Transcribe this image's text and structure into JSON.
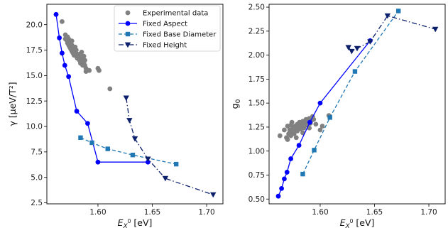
{
  "chart_data": [
    {
      "type": "scatter",
      "xlabel_base": "E",
      "xlabel_sub": "X",
      "xlabel_sup": "0",
      "xlabel_unit": " [eV]",
      "ylabel": "γ [μeV/T²]",
      "xlim": [
        1.553,
        1.715
      ],
      "ylim": [
        2.4,
        22.0
      ],
      "xticks": [
        "1.60",
        "1.65",
        "1.70"
      ],
      "xtick_values": [
        1.6,
        1.65,
        1.7
      ],
      "yticks": [
        "2.5",
        "5.0",
        "7.5",
        "10.0",
        "12.5",
        "15.0",
        "17.5",
        "20.0"
      ],
      "ytick_values": [
        2.5,
        5.0,
        7.5,
        10.0,
        12.5,
        15.0,
        17.5,
        20.0
      ],
      "grid": false,
      "legend_position": "top-right",
      "series": [
        {
          "name": "Experimental data",
          "color": "#808080",
          "marker": "circle",
          "line": false,
          "x": [
            1.567,
            1.57,
            1.57,
            1.571,
            1.572,
            1.572,
            1.573,
            1.573,
            1.574,
            1.574,
            1.575,
            1.575,
            1.576,
            1.576,
            1.577,
            1.577,
            1.578,
            1.578,
            1.579,
            1.58,
            1.58,
            1.581,
            1.581,
            1.582,
            1.583,
            1.583,
            1.584,
            1.585,
            1.586,
            1.587,
            1.588,
            1.589,
            1.59,
            1.588,
            1.587,
            1.585,
            1.586,
            1.589,
            1.592,
            1.6,
            1.601,
            1.611,
            1.584,
            1.579,
            1.576
          ],
          "y": [
            20.3,
            19.0,
            18.6,
            18.5,
            18.8,
            18.2,
            18.6,
            18.0,
            18.2,
            17.8,
            18.4,
            17.6,
            18.0,
            17.4,
            17.8,
            17.2,
            17.6,
            17.0,
            17.3,
            17.5,
            16.9,
            17.1,
            16.7,
            16.9,
            17.1,
            16.5,
            16.7,
            16.4,
            16.8,
            16.2,
            16.5,
            15.7,
            15.5,
            16.0,
            16.9,
            17.3,
            16.0,
            15.4,
            15.5,
            15.7,
            15.5,
            13.7,
            16.2,
            17.8,
            18.4
          ]
        },
        {
          "name": "Fixed Aspect",
          "color": "#0000ff",
          "marker": "circle",
          "line": "solid",
          "x": [
            1.5615,
            1.5645,
            1.567,
            1.5695,
            1.573,
            1.5805,
            1.5905,
            1.6,
            1.646
          ],
          "y": [
            21.0,
            18.7,
            17.2,
            16.0,
            14.9,
            11.5,
            10.3,
            6.5,
            6.5
          ]
        },
        {
          "name": "Fixed Base Diameter",
          "color": "#1f77b4",
          "marker": "square",
          "line": "dashed",
          "x": [
            1.584,
            1.5945,
            1.609,
            1.632,
            1.672
          ],
          "y": [
            8.9,
            8.4,
            7.8,
            7.2,
            6.3
          ]
        },
        {
          "name": "Fixed Height",
          "color": "#0b1f6b",
          "marker": "triangle-down",
          "line": "dashdot",
          "x": [
            1.626,
            1.629,
            1.634,
            1.646,
            1.662,
            1.706
          ],
          "y": [
            12.8,
            10.6,
            8.8,
            6.8,
            4.9,
            3.3
          ]
        }
      ]
    },
    {
      "type": "scatter",
      "xlabel_base": "E",
      "xlabel_sub": "X",
      "xlabel_sup": "0",
      "xlabel_unit": " [eV]",
      "ylabel_base": "g",
      "ylabel_sub": "0",
      "xlim": [
        1.553,
        1.715
      ],
      "ylim": [
        0.45,
        2.53
      ],
      "xticks": [
        "1.60",
        "1.65",
        "1.70"
      ],
      "xtick_values": [
        1.6,
        1.65,
        1.7
      ],
      "yticks": [
        "0.50",
        "0.75",
        "1.00",
        "1.25",
        "1.50",
        "1.75",
        "2.00",
        "2.25",
        "2.50"
      ],
      "ytick_values": [
        0.5,
        0.75,
        1.0,
        1.25,
        1.5,
        1.75,
        2.0,
        2.25,
        2.5
      ],
      "grid": false,
      "series": [
        {
          "name": "Experimental data",
          "color": "#808080",
          "marker": "circle",
          "line": false,
          "x": [
            1.563,
            1.567,
            1.569,
            1.57,
            1.571,
            1.572,
            1.573,
            1.574,
            1.575,
            1.576,
            1.577,
            1.578,
            1.579,
            1.58,
            1.581,
            1.582,
            1.583,
            1.584,
            1.585,
            1.586,
            1.587,
            1.588,
            1.589,
            1.59,
            1.591,
            1.592,
            1.593,
            1.594,
            1.57,
            1.573,
            1.576,
            1.579,
            1.582,
            1.585,
            1.588,
            1.591,
            1.6,
            1.602,
            1.608,
            1.574,
            1.578,
            1.584,
            1.59,
            1.596
          ],
          "y": [
            1.16,
            1.22,
            1.14,
            1.26,
            1.18,
            1.22,
            1.27,
            1.2,
            1.24,
            1.19,
            1.26,
            1.22,
            1.28,
            1.24,
            1.3,
            1.25,
            1.27,
            1.31,
            1.26,
            1.29,
            1.33,
            1.28,
            1.31,
            1.34,
            1.3,
            1.32,
            1.36,
            1.33,
            1.12,
            1.16,
            1.18,
            1.21,
            1.23,
            1.24,
            1.27,
            1.29,
            1.22,
            1.26,
            1.37,
            1.3,
            1.14,
            1.19,
            1.24,
            1.28
          ]
        },
        {
          "name": "Fixed Aspect",
          "color": "#0000ff",
          "marker": "circle",
          "line": "solid",
          "x": [
            1.5615,
            1.5645,
            1.567,
            1.5695,
            1.573,
            1.5805,
            1.5905,
            1.6,
            1.646
          ],
          "y": [
            0.53,
            0.61,
            0.71,
            0.78,
            0.92,
            1.06,
            1.3,
            1.5,
            2.15
          ]
        },
        {
          "name": "Fixed Base Diameter",
          "color": "#1f77b4",
          "marker": "square",
          "line": "dashed",
          "x": [
            1.584,
            1.5945,
            1.609,
            1.632,
            1.672
          ],
          "y": [
            0.76,
            1.01,
            1.35,
            1.83,
            2.46
          ]
        },
        {
          "name": "Fixed Height",
          "color": "#0b1f6b",
          "marker": "triangle-down",
          "line": "dashdot",
          "x": [
            1.626,
            1.629,
            1.634,
            1.646,
            1.662,
            1.706
          ],
          "y": [
            2.08,
            2.04,
            2.07,
            2.14,
            2.41,
            2.27
          ]
        }
      ]
    }
  ]
}
